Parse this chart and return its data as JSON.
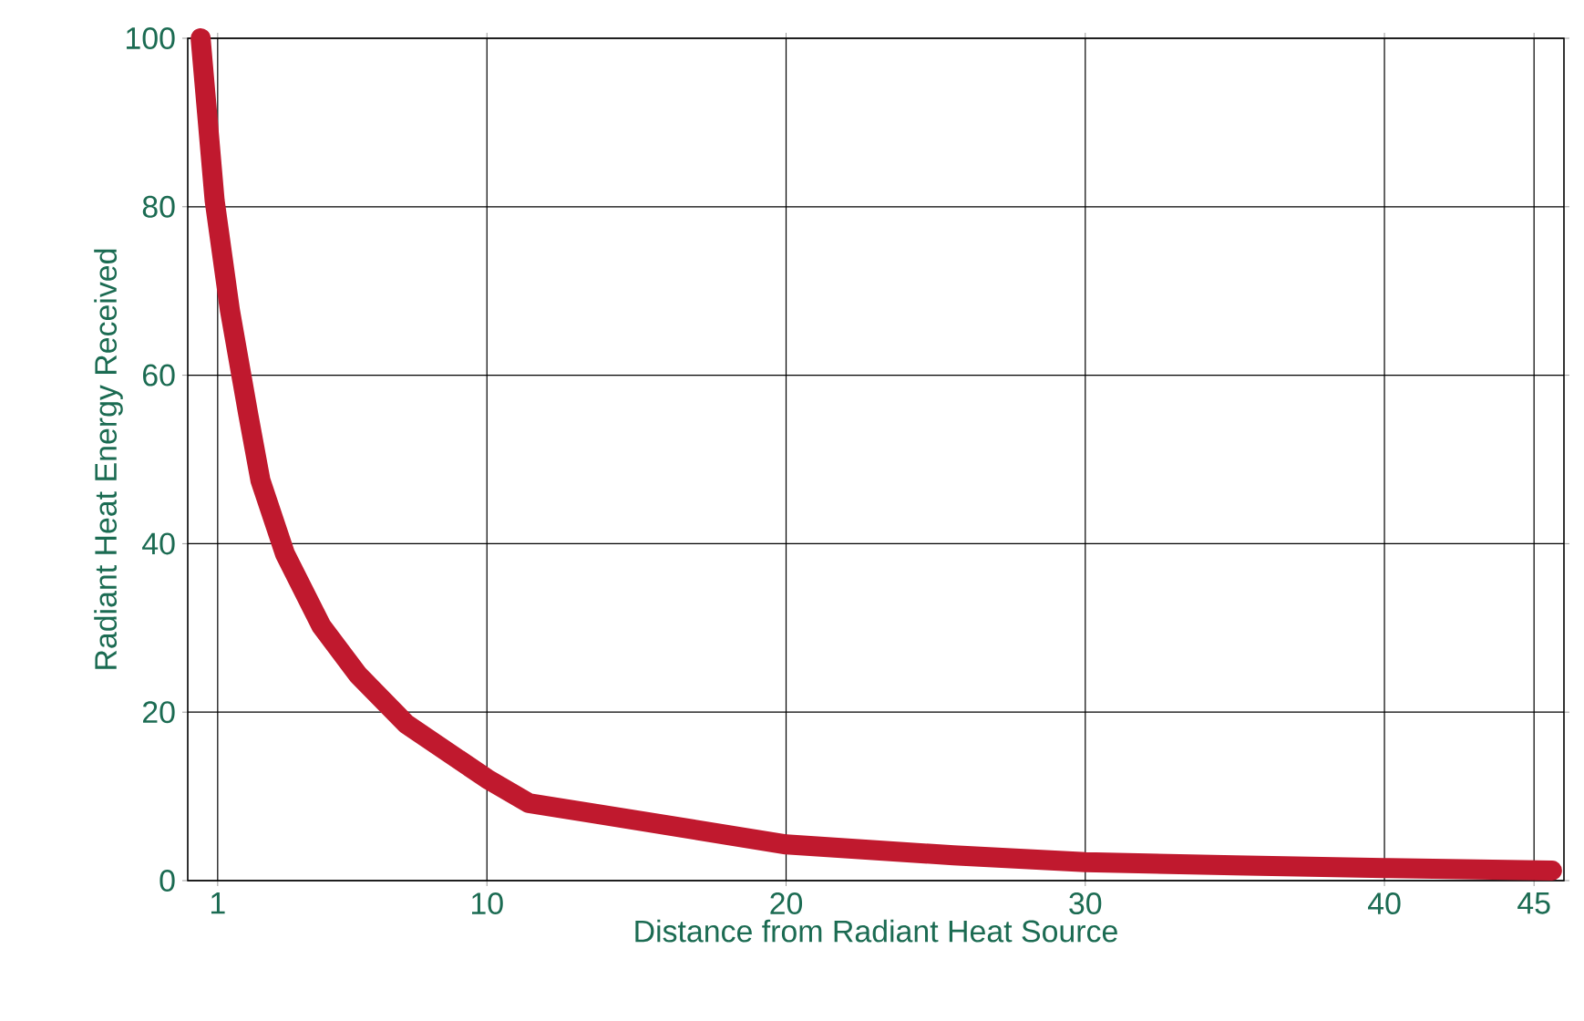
{
  "chart_data": {
    "type": "line",
    "xlabel": "Distance from Radiant Heat Source",
    "ylabel": "Radiant Heat Energy Received",
    "x": [
      0.43,
      0.9,
      1.41,
      2.02,
      2.43,
      3.25,
      4.47,
      5.7,
      7.3,
      10,
      11.4,
      13.7,
      20,
      25.6,
      30,
      35,
      40,
      45.6
    ],
    "values": [
      100,
      80.7,
      67.7,
      55.4,
      47.5,
      38.8,
      30.2,
      24.4,
      18.6,
      12.1,
      9.2,
      7.9,
      4.3,
      3.0,
      2.2,
      1.8,
      1.5,
      1.2
    ],
    "color": "#c0192e",
    "xlim": [
      0,
      46
    ],
    "ylim": [
      0,
      100
    ],
    "xticks": [
      1,
      10,
      20,
      30,
      40,
      45
    ],
    "yticks": [
      0,
      20,
      40,
      60,
      80,
      100
    ],
    "grid": true,
    "marker": "none",
    "line_style": "solid"
  }
}
